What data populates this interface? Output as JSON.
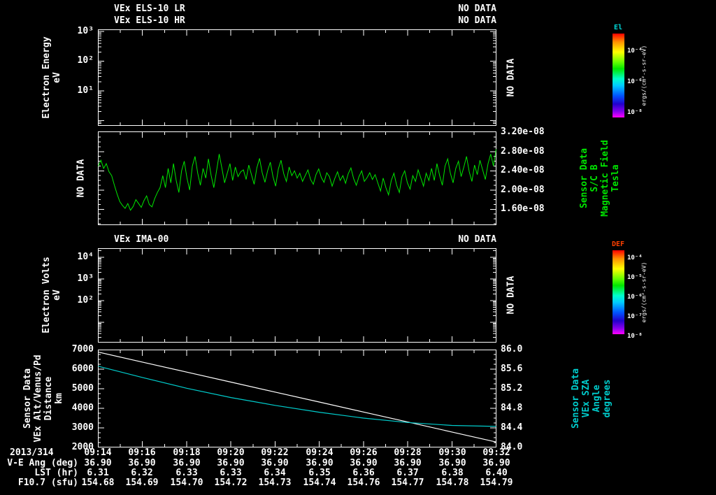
{
  "colors": {
    "background": "#000000",
    "foreground": "#ffffff",
    "mag_green": "#00e600",
    "sza_cyan": "#00cccc",
    "alt_white": "#ffffff",
    "el_title": "#00d8d8",
    "def_title": "#ff4000",
    "rainbow": [
      "#ff0000 0%",
      "#ff9100 10%",
      "#ffff00 22%",
      "#66ff00 34%",
      "#00e600 42%",
      "#00ffcc 54%",
      "#00ccff 62%",
      "#0055ff 74%",
      "#2200cc 84%",
      "#8800ee 93%",
      "#ff00ff 100%"
    ]
  },
  "panel_els": {
    "title_lr": "VEx ELS-10 LR",
    "status_lr": "NO DATA",
    "title_hr": "VEx ELS-10 HR",
    "status_hr": "NO DATA",
    "ylabel": "Electron Energy",
    "yunits": "eV",
    "yticks": [
      "10³",
      "10²",
      "10¹"
    ],
    "nodata_label": "NO DATA",
    "colorbar": {
      "title": "El",
      "ticks": [
        "10⁻⁴",
        "10⁻⁶",
        "10⁻⁸"
      ],
      "units": "ergs/(cm²-s-sr-eV)"
    }
  },
  "panel_mag": {
    "nodata_label": "NO DATA",
    "yticks": [
      "3.20e-08",
      "2.80e-08",
      "2.40e-08",
      "2.00e-08",
      "1.60e-08"
    ],
    "right_labels": [
      "Sensor Data",
      "S/C B",
      "Magnetic Field",
      "Tesla"
    ]
  },
  "panel_ima": {
    "title": "VEx IMA-00",
    "status": "NO DATA",
    "ylabel": "Electron Volts",
    "yunits": "eV",
    "yticks": [
      "10⁴",
      "10³",
      "10²"
    ],
    "nodata_label": "NO DATA",
    "colorbar": {
      "title": "DEF",
      "ticks": [
        "10⁻⁴",
        "10⁻⁵",
        "10⁻⁶",
        "10⁻⁷",
        "10⁻⁸"
      ],
      "units": "ergs/(cm²-s-sr-eV)"
    }
  },
  "panel_aux": {
    "left_labels": [
      "Sensor Data",
      "VEx Alt/Venus/Pd",
      "Distance",
      "km"
    ],
    "left_ticks": [
      "7000",
      "6000",
      "5000",
      "4000",
      "3000",
      "2000"
    ],
    "right_ticks": [
      "86.0",
      "85.6",
      "85.2",
      "84.8",
      "84.4",
      "84.0"
    ],
    "right_labels": [
      "Sensor Data",
      "VEx SZA",
      "Angle",
      "degrees"
    ]
  },
  "bottom": {
    "date": "2013/314",
    "times": [
      "09:14",
      "09:16",
      "09:18",
      "09:20",
      "09:22",
      "09:24",
      "09:26",
      "09:28",
      "09:30",
      "09:32"
    ],
    "rows": [
      {
        "label": "V-E Ang (deg)",
        "values": [
          "36.90",
          "36.90",
          "36.90",
          "36.90",
          "36.90",
          "36.90",
          "36.90",
          "36.90",
          "36.90",
          "36.90"
        ]
      },
      {
        "label": "LST (hr)",
        "values": [
          "6.31",
          "6.32",
          "6.33",
          "6.33",
          "6.34",
          "6.35",
          "6.36",
          "6.37",
          "6.38",
          "6.40"
        ]
      },
      {
        "label": "F10.7 (sfu)",
        "values": [
          "154.68",
          "154.69",
          "154.70",
          "154.72",
          "154.73",
          "154.74",
          "154.76",
          "154.77",
          "154.78",
          "154.79"
        ]
      }
    ]
  },
  "chart_data": [
    {
      "type": "heatmap",
      "title": "VEx ELS-10 LR / VEx ELS-10 HR",
      "status": "NO DATA",
      "ylabel": "Electron Energy (eV)",
      "yscale": "log",
      "ylim": [
        10,
        1000
      ],
      "colorbar_label": "El ergs/(cm²-s-sr-eV)",
      "colorbar_range": [
        1e-08,
        0.0001
      ],
      "values": []
    },
    {
      "type": "line",
      "name": "Sensor Data S/C B Magnetic Field",
      "ylabel": "Tesla",
      "ytick_values_T": [
        3.2e-08,
        2.8e-08,
        2.4e-08,
        2e-08,
        1.6e-08
      ],
      "ylim_1e8": [
        1.27,
        3.22
      ],
      "x_start": "09:14",
      "x_end": "09:32",
      "scale_note": "values are Tesla multiplied by 1e8",
      "values_1e8": [
        2.5,
        2.62,
        2.45,
        2.55,
        2.38,
        2.3,
        2.1,
        1.92,
        1.76,
        1.68,
        1.62,
        1.72,
        1.58,
        1.66,
        1.8,
        1.72,
        1.64,
        1.78,
        1.88,
        1.7,
        1.65,
        1.82,
        1.95,
        2.05,
        2.3,
        2.05,
        2.45,
        2.15,
        2.55,
        2.2,
        1.95,
        2.4,
        2.6,
        2.25,
        2.0,
        2.5,
        2.7,
        2.35,
        2.1,
        2.45,
        2.25,
        2.65,
        2.3,
        2.05,
        2.4,
        2.75,
        2.45,
        2.15,
        2.35,
        2.55,
        2.2,
        2.48,
        2.28,
        2.38,
        2.42,
        2.22,
        2.52,
        2.32,
        2.12,
        2.46,
        2.66,
        2.36,
        2.16,
        2.4,
        2.58,
        2.28,
        2.08,
        2.44,
        2.62,
        2.34,
        2.18,
        2.48,
        2.3,
        2.4,
        2.25,
        2.35,
        2.18,
        2.3,
        2.42,
        2.22,
        2.12,
        2.32,
        2.44,
        2.26,
        2.16,
        2.36,
        2.28,
        2.08,
        2.24,
        2.38,
        2.2,
        2.3,
        2.14,
        2.34,
        2.46,
        2.24,
        2.1,
        2.28,
        2.4,
        2.18,
        2.26,
        2.36,
        2.22,
        2.32,
        2.15,
        1.98,
        2.25,
        2.05,
        1.9,
        2.2,
        2.35,
        2.1,
        1.95,
        2.28,
        2.4,
        2.15,
        2.02,
        2.3,
        2.18,
        2.42,
        2.25,
        2.08,
        2.35,
        2.2,
        2.45,
        2.2,
        2.55,
        2.3,
        2.1,
        2.5,
        2.65,
        2.35,
        2.15,
        2.45,
        2.6,
        2.28,
        2.48,
        2.7,
        2.38,
        2.18,
        2.52,
        2.32,
        2.62,
        2.42,
        2.22,
        2.55,
        2.75,
        2.5,
        2.85
      ]
    },
    {
      "type": "heatmap",
      "title": "VEx IMA-00",
      "status": "NO DATA",
      "ylabel": "Electron Volts (eV)",
      "yscale": "log",
      "ylim": [
        100,
        10000
      ],
      "colorbar_label": "DEF ergs/(cm²-s-sr-eV)",
      "colorbar_range": [
        1e-08,
        0.0001
      ],
      "values": []
    },
    {
      "type": "line",
      "x_times": [
        "09:14",
        "09:16",
        "09:18",
        "09:20",
        "09:22",
        "09:24",
        "09:26",
        "09:28",
        "09:30",
        "09:32"
      ],
      "ylim_left": [
        2000,
        7000
      ],
      "ylim_right": [
        84.0,
        86.0
      ],
      "series": [
        {
          "name": "VEx Alt/Venus/Pd Distance (km)",
          "color": "#ffffff",
          "values": [
            6870,
            6360,
            5850,
            5340,
            4830,
            4320,
            3810,
            3300,
            2790,
            2280
          ]
        },
        {
          "name": "VEx SZA Angle (degrees)",
          "color": "#00cccc",
          "values": [
            85.66,
            85.43,
            85.21,
            85.02,
            84.86,
            84.72,
            84.6,
            84.51,
            84.45,
            84.43
          ]
        }
      ]
    }
  ]
}
